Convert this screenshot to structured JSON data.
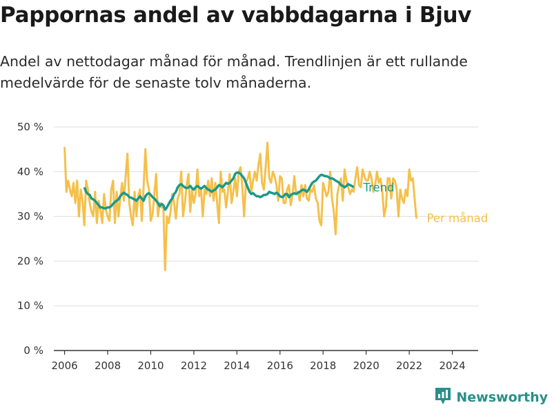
{
  "title": "Pappornas andel av vabbdagarna i Bjuv",
  "subtitle": "Andel av nettodagar månad för månad. Trendlinjen är ett rullande medelvärde för de senaste tolv månaderna.",
  "brand": {
    "name": "Newsworthy",
    "icon": "newsworthy-logo-icon"
  },
  "colors": {
    "monthly": "#f5c04a",
    "trend": "#1a9a8a",
    "grid": "#dddddd",
    "axis": "#333333",
    "brand": "#2a8f88"
  },
  "chart_data": {
    "type": "line",
    "ylim": [
      0,
      50
    ],
    "xlim": [
      2005.5,
      2025.2
    ],
    "y_ticks": [
      0,
      10,
      20,
      30,
      40,
      50
    ],
    "y_tick_labels": [
      "0 %",
      "10 %",
      "20 %",
      "30 %",
      "40 %",
      "50 %"
    ],
    "x_ticks": [
      2006,
      2008,
      2010,
      2012,
      2014,
      2016,
      2018,
      2020,
      2022,
      2024
    ],
    "x_tick_labels": [
      "2006",
      "2008",
      "2010",
      "2012",
      "2014",
      "2016",
      "2018",
      "2020",
      "2022",
      "2024"
    ],
    "grid": true,
    "series": [
      {
        "name": "Per månad",
        "x_start": "2006-01",
        "values": [
          45.5,
          35.5,
          38.0,
          36.0,
          34.5,
          37.5,
          33.0,
          38.0,
          30.0,
          36.0,
          33.5,
          28.0,
          38.0,
          36.0,
          33.0,
          31.0,
          30.0,
          35.5,
          28.5,
          33.5,
          31.5,
          28.5,
          35.0,
          31.5,
          30.0,
          29.0,
          36.0,
          38.0,
          28.5,
          35.5,
          30.0,
          34.0,
          37.5,
          33.5,
          39.0,
          44.0,
          33.0,
          30.0,
          28.0,
          35.5,
          30.0,
          34.5,
          36.0,
          29.0,
          36.5,
          45.0,
          38.0,
          36.0,
          29.0,
          30.5,
          35.0,
          39.5,
          30.0,
          33.0,
          32.0,
          32.5,
          18.0,
          30.0,
          28.5,
          31.0,
          35.0,
          33.0,
          29.5,
          34.0,
          35.0,
          40.0,
          30.0,
          33.0,
          37.0,
          39.5,
          31.0,
          36.0,
          33.0,
          35.0,
          40.5,
          34.5,
          36.0,
          30.0,
          36.0,
          35.0,
          38.0,
          34.5,
          38.5,
          33.5,
          37.5,
          33.0,
          28.5,
          40.0,
          35.5,
          36.0,
          32.0,
          35.5,
          39.5,
          33.0,
          35.5,
          38.5,
          34.5,
          40.0,
          41.0,
          36.5,
          30.0,
          37.5,
          38.5,
          40.0,
          35.5,
          38.0,
          40.0,
          38.0,
          41.5,
          44.0,
          37.5,
          36.0,
          41.0,
          46.5,
          38.5,
          37.5,
          40.0,
          39.0,
          37.0,
          33.5,
          39.0,
          38.5,
          33.0,
          33.0,
          36.0,
          37.0,
          32.5,
          35.0,
          39.0,
          35.0,
          35.5,
          33.5,
          37.0,
          34.5,
          37.0,
          34.0,
          33.5,
          36.0,
          35.5,
          37.0,
          34.0,
          33.0,
          29.0,
          28.0,
          37.5,
          36.0,
          34.5,
          35.5,
          40.0,
          34.0,
          31.0,
          26.0,
          35.0,
          37.0,
          38.5,
          33.5,
          40.5,
          38.0,
          36.5,
          35.0,
          36.0,
          35.5,
          38.5,
          41.0,
          37.0,
          36.5,
          40.5,
          39.0,
          38.0,
          38.0,
          40.0,
          38.5,
          35.5,
          37.0,
          40.0,
          37.5,
          38.5,
          35.5,
          30.0,
          32.0,
          38.5,
          38.5,
          34.0,
          38.5,
          38.0,
          36.0,
          30.0,
          36.0,
          34.0,
          33.0,
          36.0,
          34.5,
          40.5,
          38.0,
          38.5,
          34.0,
          29.5
        ]
      },
      {
        "name": "Trend",
        "x_start": "2006-12",
        "values": [
          36.5,
          35.5,
          35.0,
          34.8,
          34.0,
          33.8,
          33.5,
          33.0,
          32.5,
          32.0,
          32.0,
          31.8,
          31.8,
          32.0,
          32.0,
          32.3,
          32.8,
          33.2,
          33.5,
          33.8,
          34.5,
          35.0,
          35.3,
          35.0,
          34.8,
          34.3,
          34.2,
          34.0,
          33.8,
          33.5,
          34.0,
          34.5,
          34.0,
          33.5,
          34.5,
          35.0,
          35.2,
          34.8,
          34.3,
          34.0,
          33.5,
          33.0,
          32.3,
          32.8,
          32.5,
          31.5,
          32.0,
          32.8,
          33.5,
          34.0,
          35.0,
          35.5,
          36.5,
          37.0,
          37.2,
          36.8,
          36.5,
          36.3,
          36.5,
          36.8,
          36.3,
          36.0,
          36.5,
          36.8,
          36.5,
          36.2,
          36.5,
          36.8,
          36.3,
          36.0,
          35.8,
          35.5,
          35.8,
          36.0,
          36.5,
          37.0,
          36.8,
          36.5,
          37.0,
          37.5,
          37.3,
          37.5,
          38.0,
          38.5,
          39.5,
          39.8,
          39.8,
          39.5,
          39.0,
          38.5,
          37.5,
          36.5,
          35.5,
          35.0,
          35.2,
          34.8,
          34.5,
          34.5,
          34.3,
          34.5,
          34.8,
          34.8,
          35.0,
          35.5,
          35.3,
          35.2,
          35.0,
          35.3,
          35.0,
          34.5,
          34.3,
          34.5,
          35.0,
          35.0,
          34.3,
          34.8,
          35.0,
          35.2,
          35.0,
          35.3,
          35.5,
          35.8,
          36.0,
          35.8,
          35.5,
          36.0,
          36.8,
          37.5,
          37.8,
          38.0,
          38.5,
          39.0,
          39.3,
          39.2,
          39.0,
          39.0,
          38.8,
          38.5,
          38.5,
          38.3,
          38.0,
          37.8,
          37.5,
          37.0,
          36.8,
          36.5,
          36.8,
          37.2,
          37.0,
          36.8,
          36.5
        ]
      }
    ],
    "labels": {
      "trend": "Trend",
      "monthly": "Per månad"
    }
  }
}
